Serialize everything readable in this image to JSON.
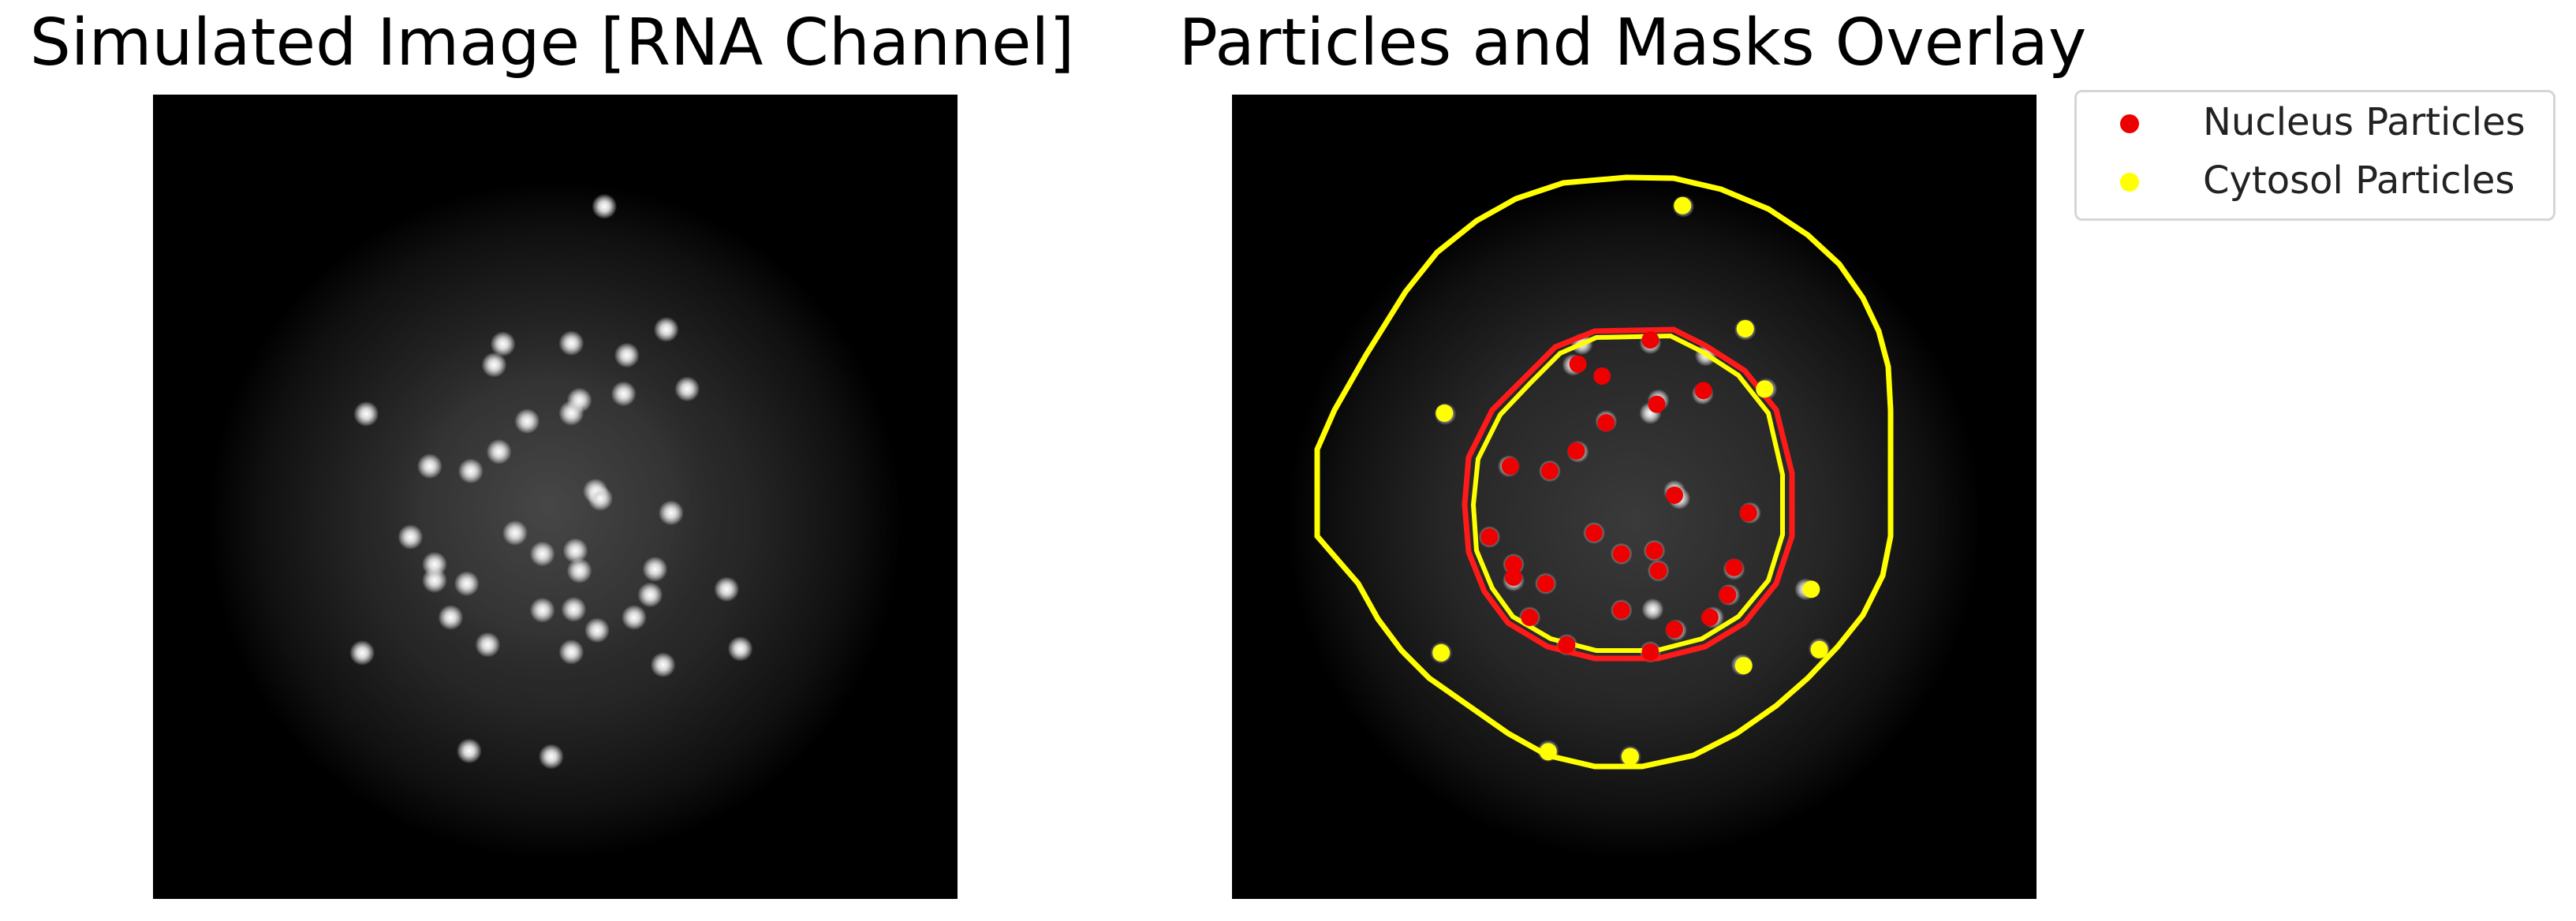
{
  "left_panel": {
    "title": "Simulated Image [RNA Channel]",
    "spots": [
      [
        0.561,
        0.139
      ],
      [
        0.638,
        0.292
      ],
      [
        0.435,
        0.31
      ],
      [
        0.52,
        0.309
      ],
      [
        0.589,
        0.324
      ],
      [
        0.424,
        0.336
      ],
      [
        0.664,
        0.366
      ],
      [
        0.585,
        0.372
      ],
      [
        0.53,
        0.38
      ],
      [
        0.265,
        0.397
      ],
      [
        0.52,
        0.396
      ],
      [
        0.465,
        0.406
      ],
      [
        0.43,
        0.444
      ],
      [
        0.344,
        0.462
      ],
      [
        0.395,
        0.468
      ],
      [
        0.55,
        0.493
      ],
      [
        0.556,
        0.502
      ],
      [
        0.644,
        0.52
      ],
      [
        0.32,
        0.55
      ],
      [
        0.45,
        0.545
      ],
      [
        0.484,
        0.571
      ],
      [
        0.525,
        0.567
      ],
      [
        0.53,
        0.592
      ],
      [
        0.35,
        0.584
      ],
      [
        0.35,
        0.604
      ],
      [
        0.39,
        0.608
      ],
      [
        0.624,
        0.59
      ],
      [
        0.713,
        0.615
      ],
      [
        0.618,
        0.622
      ],
      [
        0.37,
        0.65
      ],
      [
        0.484,
        0.641
      ],
      [
        0.552,
        0.666
      ],
      [
        0.598,
        0.65
      ],
      [
        0.523,
        0.64
      ],
      [
        0.416,
        0.684
      ],
      [
        0.52,
        0.693
      ],
      [
        0.26,
        0.694
      ],
      [
        0.634,
        0.709
      ],
      [
        0.73,
        0.689
      ],
      [
        0.393,
        0.816
      ],
      [
        0.495,
        0.823
      ]
    ]
  },
  "right_panel": {
    "title": "Particles and Masks Overlay",
    "nucleus_particles": [
      [
        0.52,
        0.305
      ],
      [
        0.43,
        0.335
      ],
      [
        0.46,
        0.35
      ],
      [
        0.586,
        0.368
      ],
      [
        0.528,
        0.385
      ],
      [
        0.465,
        0.408
      ],
      [
        0.428,
        0.443
      ],
      [
        0.346,
        0.462
      ],
      [
        0.395,
        0.468
      ],
      [
        0.55,
        0.498
      ],
      [
        0.642,
        0.52
      ],
      [
        0.32,
        0.55
      ],
      [
        0.45,
        0.545
      ],
      [
        0.484,
        0.571
      ],
      [
        0.525,
        0.567
      ],
      [
        0.53,
        0.592
      ],
      [
        0.35,
        0.584
      ],
      [
        0.35,
        0.6
      ],
      [
        0.39,
        0.608
      ],
      [
        0.624,
        0.588
      ],
      [
        0.616,
        0.622
      ],
      [
        0.37,
        0.65
      ],
      [
        0.484,
        0.641
      ],
      [
        0.55,
        0.665
      ],
      [
        0.594,
        0.65
      ],
      [
        0.416,
        0.684
      ],
      [
        0.52,
        0.693
      ]
    ],
    "cytosol_particles": [
      [
        0.56,
        0.138
      ],
      [
        0.638,
        0.291
      ],
      [
        0.662,
        0.366
      ],
      [
        0.264,
        0.396
      ],
      [
        0.72,
        0.615
      ],
      [
        0.26,
        0.694
      ],
      [
        0.636,
        0.71
      ],
      [
        0.73,
        0.69
      ],
      [
        0.393,
        0.817
      ],
      [
        0.495,
        0.823
      ]
    ]
  },
  "legend": {
    "items": [
      {
        "label": "Nucleus Particles",
        "color": "#ee0000"
      },
      {
        "label": "Cytosol Particles",
        "color": "#ffff00"
      }
    ]
  },
  "colors": {
    "nucleus_mask": "#ff1a1a",
    "cytosol_mask": "#ffff00",
    "background": "#000000"
  }
}
